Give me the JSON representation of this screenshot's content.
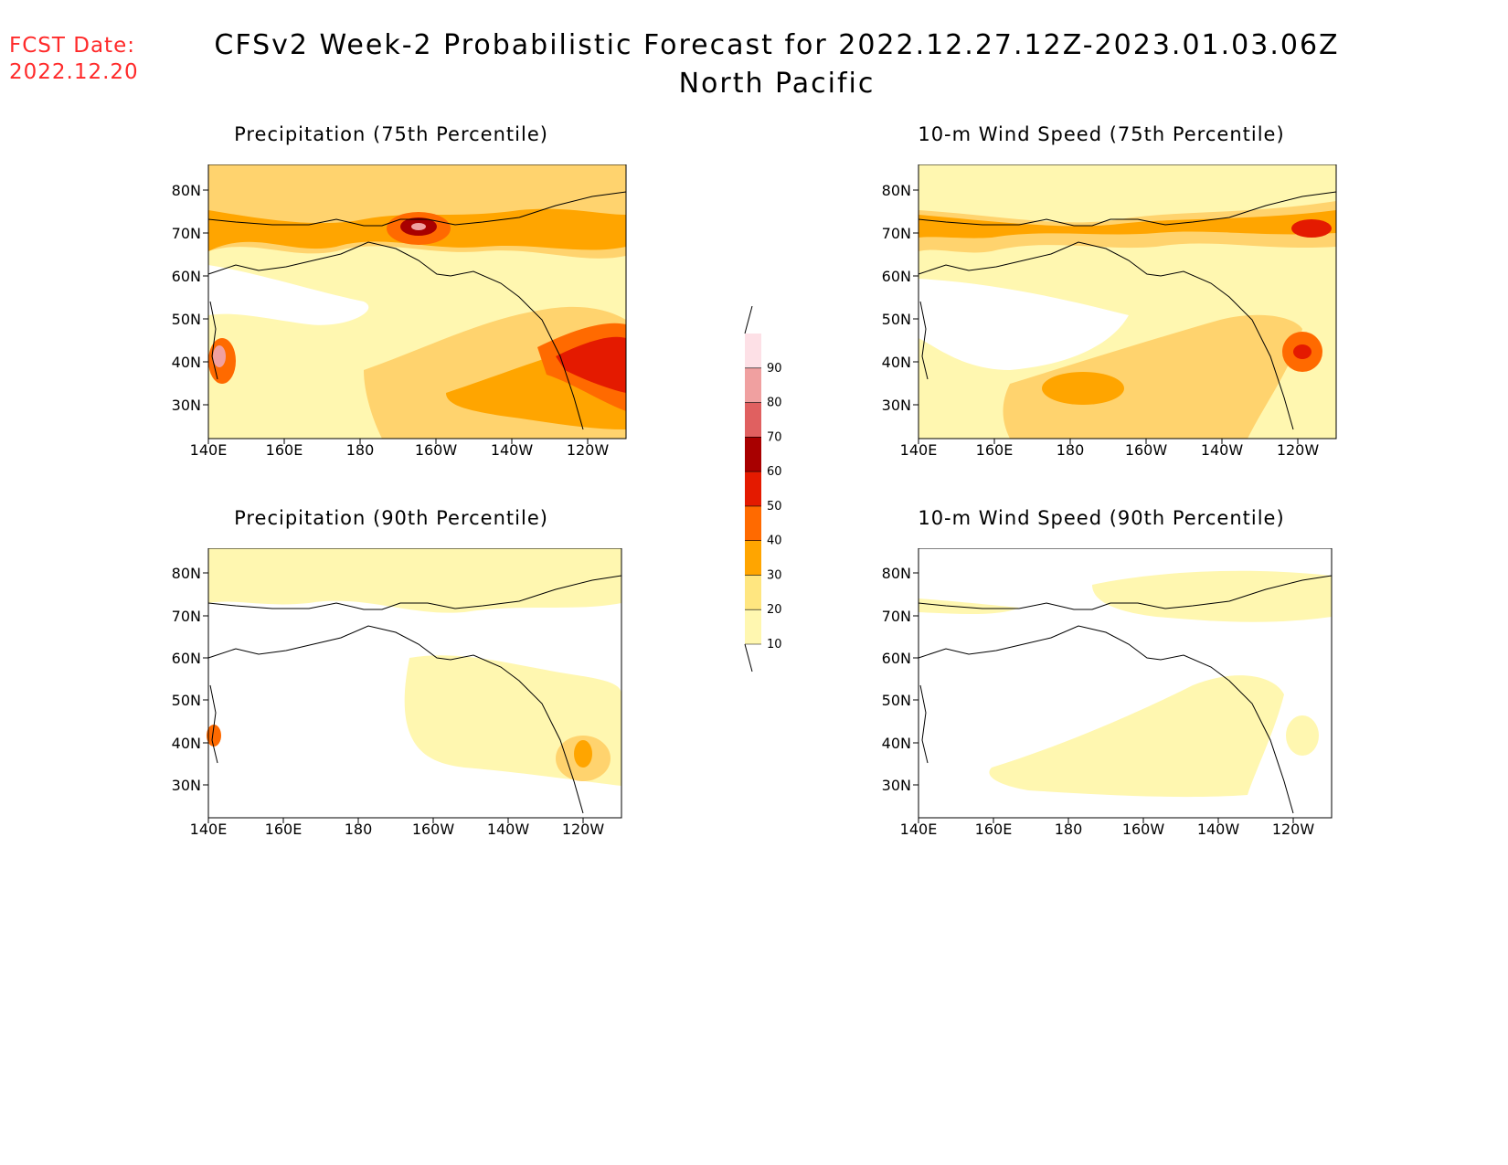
{
  "header": {
    "fcst_label": "FCST Date:",
    "fcst_date": "2022.12.20",
    "title": "CFSv2 Week-2 Probabilistic Forecast for 2022.12.27.12Z-2023.01.03.06Z",
    "subtitle": "North Pacific"
  },
  "axes": {
    "lat_labels": [
      "80N",
      "70N",
      "60N",
      "50N",
      "40N",
      "30N"
    ],
    "lon_labels": [
      "140E",
      "160E",
      "180",
      "160W",
      "140W",
      "120W"
    ]
  },
  "panels": [
    {
      "id": "precip75",
      "title": "Precipitation (75th Percentile)"
    },
    {
      "id": "wind75",
      "title": "10-m Wind Speed (75th Percentile)"
    },
    {
      "id": "precip90",
      "title": "Precipitation (90th Percentile)"
    },
    {
      "id": "wind90",
      "title": "10-m Wind Speed (90th Percentile)"
    }
  ],
  "colorbar": {
    "levels": [
      "10",
      "20",
      "30",
      "40",
      "50",
      "60",
      "70",
      "80",
      "90"
    ],
    "colors": [
      "#fff7b0",
      "#ffe680",
      "#ffa500",
      "#ff6a00",
      "#e41a00",
      "#a80000",
      "#e06060",
      "#f0a0a0",
      "#fde0e6"
    ]
  }
}
